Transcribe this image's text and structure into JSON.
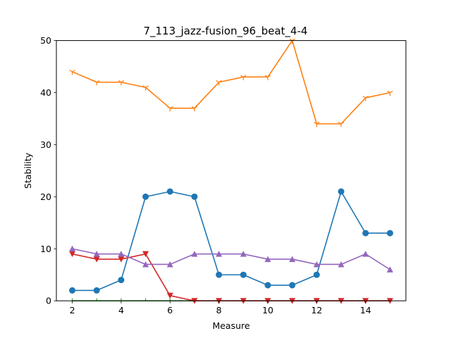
{
  "chart_data": {
    "type": "line",
    "title": "7_113_jazz-fusion_96_beat_4-4",
    "xlabel": "Measure",
    "ylabel": "Stability",
    "xlim": [
      1.35,
      15.65
    ],
    "ylim": [
      0,
      50
    ],
    "xticks": [
      2,
      4,
      6,
      8,
      10,
      12,
      14
    ],
    "yticks": [
      0,
      10,
      20,
      30,
      40,
      50
    ],
    "grid": false,
    "x": [
      2,
      3,
      4,
      5,
      6,
      7,
      8,
      9,
      10,
      11,
      12,
      13,
      14,
      15
    ],
    "series": [
      {
        "name": "series-1",
        "color": "#1f77b4",
        "marker": "circle",
        "values": [
          2,
          2,
          4,
          20,
          21,
          20,
          5,
          5,
          3,
          3,
          5,
          21,
          13,
          13
        ]
      },
      {
        "name": "series-2",
        "color": "#ff7f0e",
        "marker": "tri-down",
        "values": [
          44,
          42,
          42,
          41,
          37,
          37,
          42,
          43,
          43,
          50,
          34,
          34,
          39,
          40
        ]
      },
      {
        "name": "series-3",
        "color": "#2ca02c",
        "marker": "tick",
        "values": [
          0,
          0,
          0,
          0,
          0,
          0,
          0,
          0,
          0,
          0,
          0,
          0,
          0,
          0
        ]
      },
      {
        "name": "series-4",
        "color": "#d62728",
        "marker": "triangle-down",
        "values": [
          9,
          8,
          8,
          9,
          1,
          0,
          0,
          0,
          0,
          0,
          0,
          0,
          0,
          0
        ]
      },
      {
        "name": "series-5",
        "color": "#9467bd",
        "marker": "triangle-up",
        "values": [
          10,
          9,
          9,
          7,
          7,
          9,
          9,
          9,
          8,
          8,
          7,
          7,
          9,
          6
        ]
      }
    ]
  }
}
